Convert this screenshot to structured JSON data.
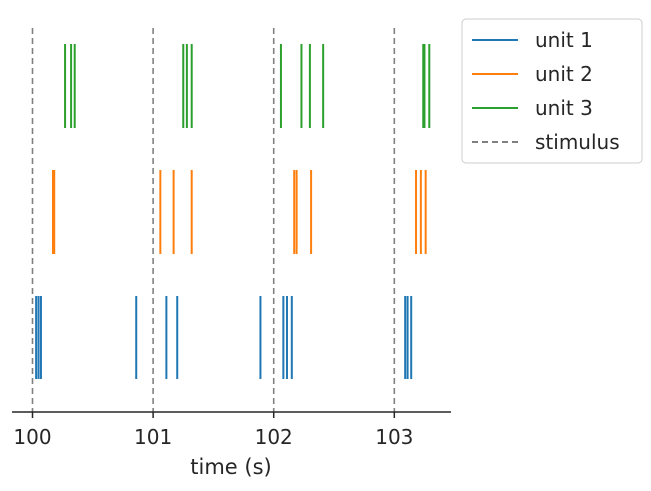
{
  "chart_data": {
    "type": "scatter",
    "subtype": "spike-raster",
    "title": "",
    "xlabel": "time (s)",
    "ylabel": "",
    "xlim": [
      99.83,
      103.47
    ],
    "xticks": [
      100,
      101,
      102,
      103
    ],
    "xtick_labels": [
      "100",
      "101",
      "102",
      "103"
    ],
    "grid": false,
    "legend_position": "outside-top-right",
    "series": [
      {
        "name": "unit 1",
        "color": "#1f77b4",
        "spikes": [
          100.03,
          100.05,
          100.07,
          100.86,
          101.11,
          101.2,
          101.89,
          102.08,
          102.11,
          102.15,
          103.09,
          103.11,
          103.14
        ]
      },
      {
        "name": "unit 2",
        "color": "#ff7f0e",
        "spikes": [
          100.17,
          100.18,
          101.06,
          101.17,
          101.32,
          102.17,
          102.19,
          102.31,
          103.18,
          103.22,
          103.26
        ]
      },
      {
        "name": "unit 3",
        "color": "#2ca02c",
        "spikes": [
          100.27,
          100.32,
          100.35,
          101.25,
          101.28,
          101.32,
          102.06,
          102.23,
          102.3,
          102.41,
          103.24,
          103.25,
          103.29
        ]
      }
    ],
    "stimulus": {
      "name": "stimulus",
      "color": "#808080",
      "times": [
        100,
        101,
        102,
        103
      ]
    }
  }
}
